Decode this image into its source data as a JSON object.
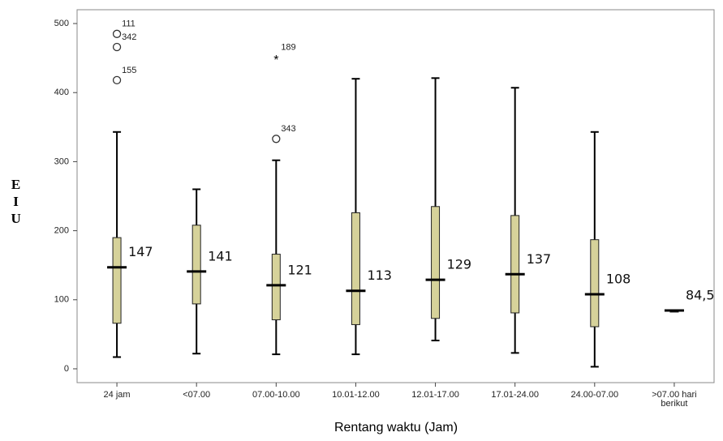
{
  "chart_data": {
    "type": "box",
    "xlabel": "Rentang waktu (Jam)",
    "ylabel": "EIU",
    "ylim": [
      -20,
      520
    ],
    "yticks": [
      0,
      100,
      200,
      300,
      400,
      500
    ],
    "box_color": "#d6d29a",
    "categories": [
      "24 jam",
      "<07.00",
      "07.00-10.00",
      "10.01-12.00",
      "12.01-17.00",
      "17.01-24.00",
      "24.00-07.00",
      ">07.00 hari berikut"
    ],
    "boxes": [
      {
        "low": 17,
        "q1": 66,
        "median": 147,
        "q3": 190,
        "high": 343,
        "outliers": [
          {
            "value": 485,
            "label": "111",
            "marker": "circle"
          },
          {
            "value": 466,
            "label": "342",
            "marker": "circle"
          },
          {
            "value": 418,
            "label": "155",
            "marker": "circle"
          }
        ]
      },
      {
        "low": 22,
        "q1": 94,
        "median": 141,
        "q3": 208,
        "high": 260
      },
      {
        "low": 21,
        "q1": 71,
        "median": 121,
        "q3": 166,
        "high": 302,
        "outliers": [
          {
            "value": 451,
            "label": "189",
            "marker": "star"
          },
          {
            "value": 333,
            "label": "343",
            "marker": "circle"
          }
        ]
      },
      {
        "low": 21,
        "q1": 64,
        "median": 113,
        "q3": 226,
        "high": 420
      },
      {
        "low": 41,
        "q1": 73,
        "median": 129,
        "q3": 235,
        "high": 421
      },
      {
        "low": 23,
        "q1": 81,
        "median": 137,
        "q3": 222,
        "high": 407
      },
      {
        "low": 3,
        "q1": 61,
        "median": 108,
        "q3": 187,
        "high": 343
      },
      {
        "low": 84.5,
        "q1": 84.5,
        "median": 84.5,
        "median_label": "84,5",
        "q3": 84.5,
        "high": 84.5
      }
    ]
  }
}
